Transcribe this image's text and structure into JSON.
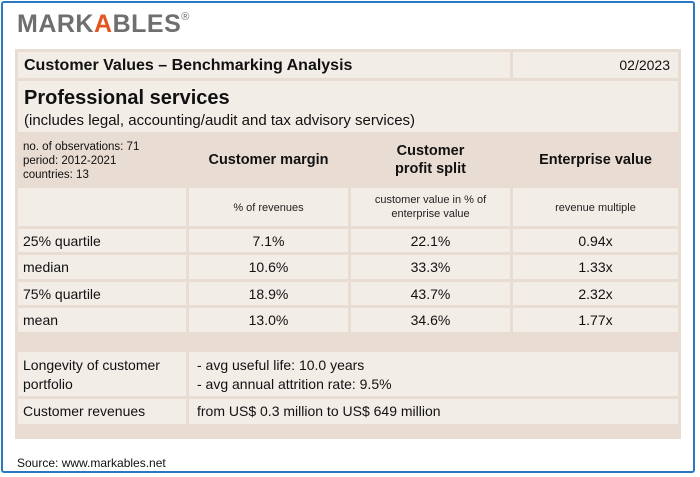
{
  "logo": {
    "part1": "MARK",
    "part2": "A",
    "part3": "BLES",
    "mark": "®"
  },
  "header": {
    "title": "Customer Values – Benchmarking Analysis",
    "date": "02/2023"
  },
  "section": {
    "title": "Professional services",
    "subtitle": "(includes legal, accounting/audit and tax advisory services)"
  },
  "meta": {
    "observations": "no. of observations: 71",
    "period": "period: 2012-2021",
    "countries": "countries: 13"
  },
  "columns": [
    {
      "title": "Customer margin",
      "unit": "% of revenues"
    },
    {
      "title_line1": "Customer",
      "title_line2": "profit split",
      "unit_line1": "customer value in % of",
      "unit_line2": "enterprise value"
    },
    {
      "title": "Enterprise value",
      "unit": "revenue multiple"
    }
  ],
  "rows": [
    {
      "label": "25% quartile",
      "margin": "7.1%",
      "split": "22.1%",
      "ev": "0.94x"
    },
    {
      "label": "median",
      "margin": "10.6%",
      "split": "33.3%",
      "ev": "1.33x"
    },
    {
      "label": "75% quartile",
      "margin": "18.9%",
      "split": "43.7%",
      "ev": "2.32x"
    },
    {
      "label": "mean",
      "margin": "13.0%",
      "split": "34.6%",
      "ev": "1.77x"
    }
  ],
  "longevity": {
    "label_line1": "Longevity of customer",
    "label_line2": "portfolio",
    "value_line1": "- avg useful life: 10.0 years",
    "value_line2": "- avg annual attrition rate: 9.5%"
  },
  "revenues": {
    "label": "Customer revenues",
    "value": "from US$ 0.3 million to US$ 649 million"
  },
  "source": "Source: www.markables.net"
}
